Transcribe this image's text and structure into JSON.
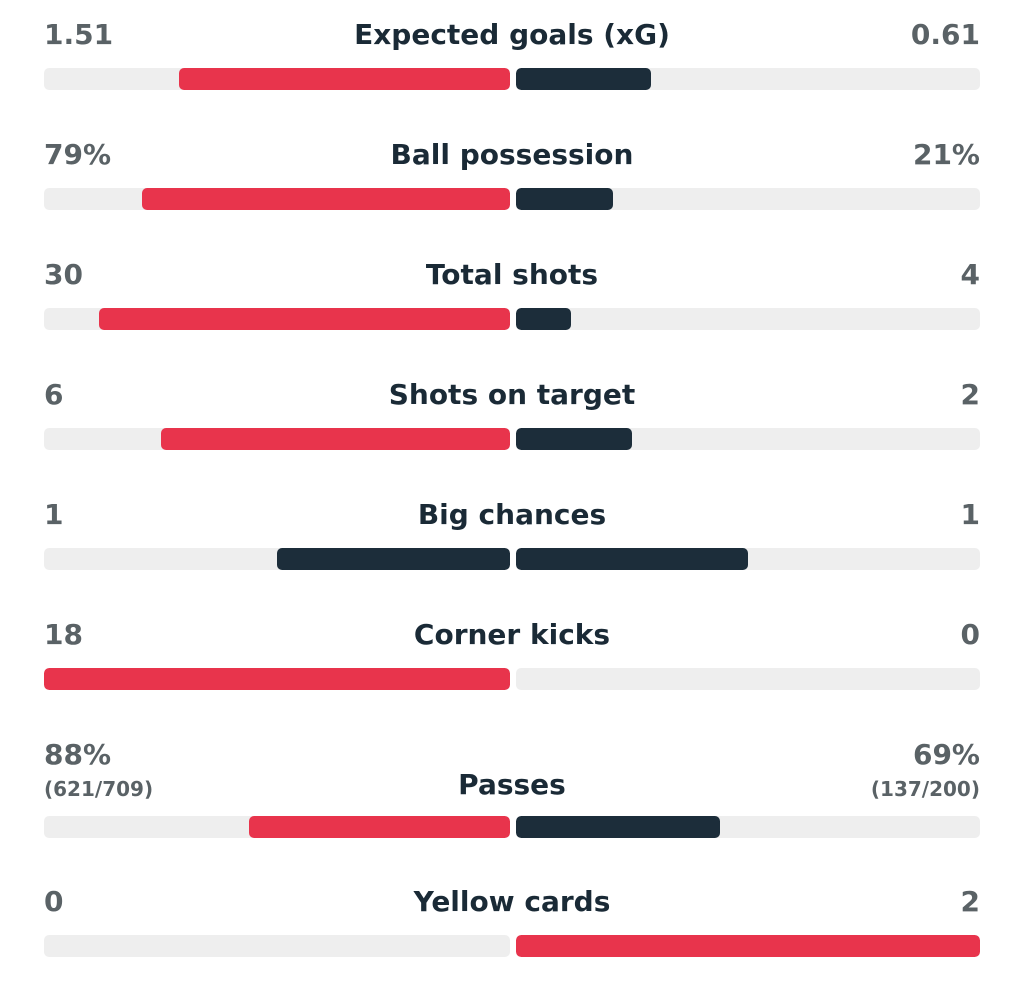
{
  "colors": {
    "red": "#e8344c",
    "dark": "#1c2d3a",
    "track": "#eeeeee"
  },
  "stats": [
    {
      "label": "Expected goals (xG)",
      "home": "1.51",
      "away": "0.61",
      "home_share": 0.71,
      "away_share": 0.29,
      "home_color": "#e8344c",
      "away_color": "#1c2d3a"
    },
    {
      "label": "Ball possession",
      "home": "79%",
      "away": "21%",
      "home_share": 0.79,
      "away_share": 0.21,
      "home_color": "#e8344c",
      "away_color": "#1c2d3a"
    },
    {
      "label": "Total shots",
      "home": "30",
      "away": "4",
      "home_share": 0.882,
      "away_share": 0.118,
      "home_color": "#e8344c",
      "away_color": "#1c2d3a"
    },
    {
      "label": "Shots on target",
      "home": "6",
      "away": "2",
      "home_share": 0.75,
      "away_share": 0.25,
      "home_color": "#e8344c",
      "away_color": "#1c2d3a"
    },
    {
      "label": "Big chances",
      "home": "1",
      "away": "1",
      "home_share": 0.5,
      "away_share": 0.5,
      "home_color": "#1c2d3a",
      "away_color": "#1c2d3a"
    },
    {
      "label": "Corner kicks",
      "home": "18",
      "away": "0",
      "home_share": 1.0,
      "away_share": 0.0,
      "home_color": "#e8344c",
      "away_color": "#1c2d3a"
    },
    {
      "label": "Passes",
      "home": "88%",
      "away": "69%",
      "home_sub": "(621/709)",
      "away_sub": "(137/200)",
      "home_share": 0.56,
      "away_share": 0.44,
      "home_color": "#e8344c",
      "away_color": "#1c2d3a"
    },
    {
      "label": "Yellow cards",
      "home": "0",
      "away": "2",
      "home_share": 0.0,
      "away_share": 1.0,
      "home_color": "#1c2d3a",
      "away_color": "#e8344c"
    }
  ]
}
